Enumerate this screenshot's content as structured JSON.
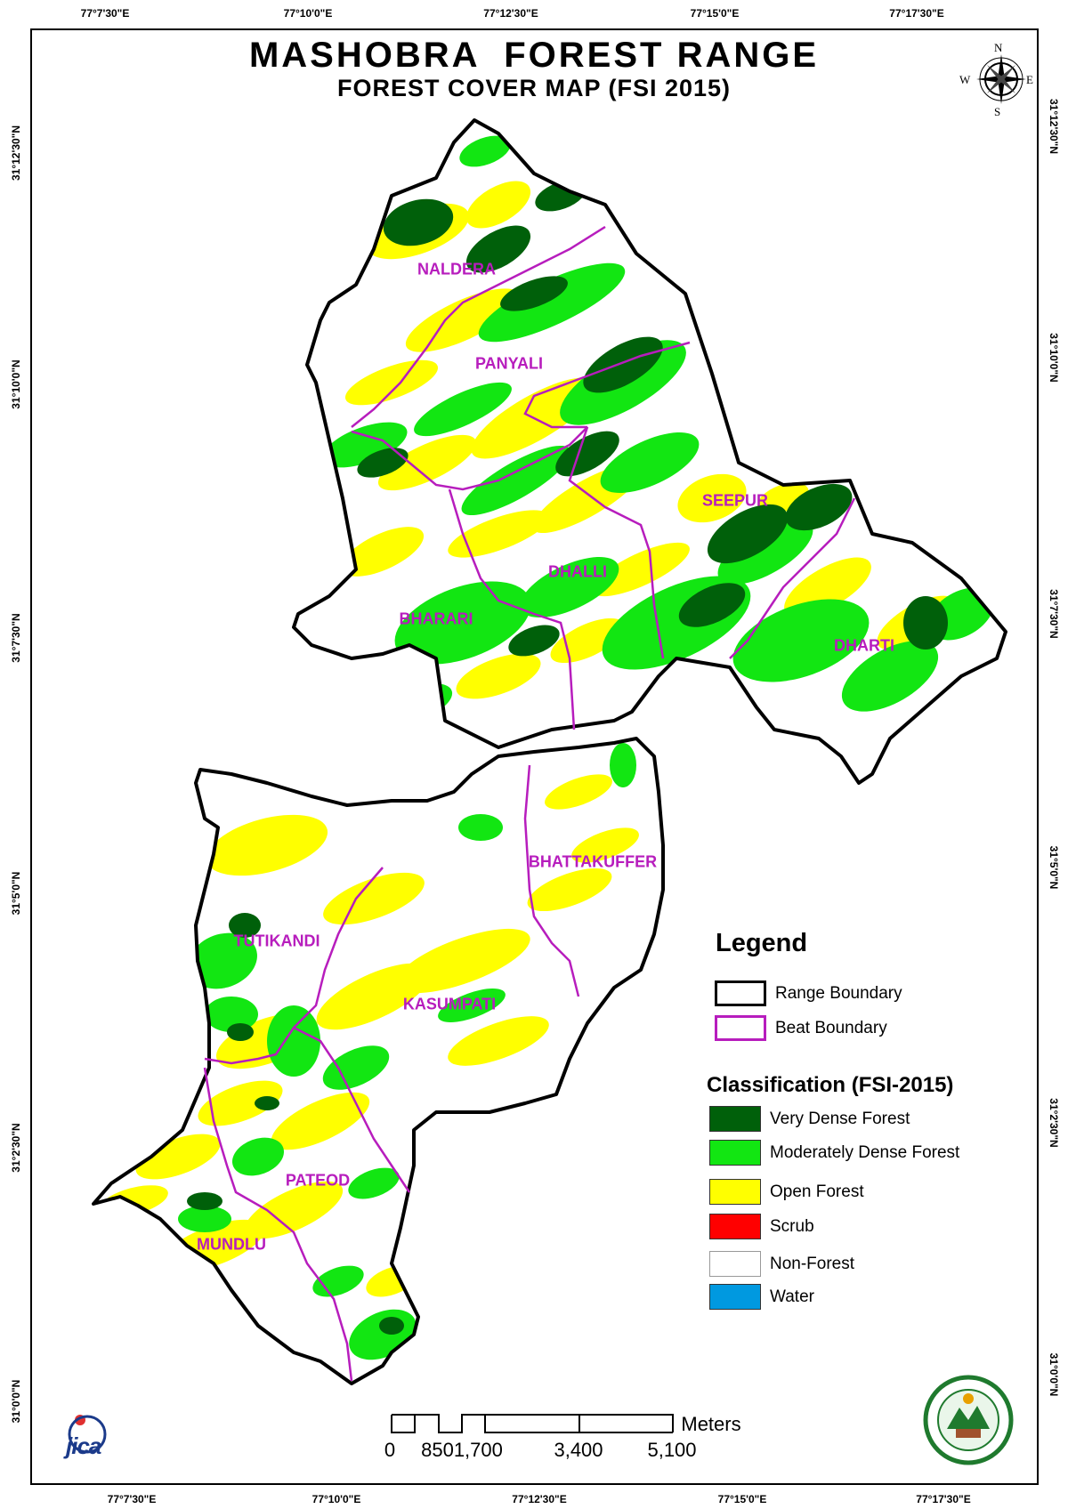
{
  "map": {
    "title": "MASHOBRA  FOREST RANGE",
    "subtitle": "FOREST COVER MAP (FSI 2015)"
  },
  "axes": {
    "top_ticks": [
      "77°7'30\"E",
      "77°10'0\"E",
      "77°12'30\"E",
      "77°15'0\"E",
      "77°17'30\"E"
    ],
    "bottom_ticks": [
      "77°7'30\"E",
      "77°10'0\"E",
      "77°12'30\"E",
      "77°15'0\"E",
      "77°17'30\"E"
    ],
    "left_ticks": [
      "31°12'30\"N",
      "31°10'0\"N",
      "31°7'30\"N",
      "31°5'0\"N",
      "31°2'30\"N",
      "31°0'0\"N"
    ],
    "right_ticks": [
      "31°12'30\"N",
      "31°10'0\"N",
      "31°7'30\"N",
      "31°5'0\"N",
      "31°2'30\"N",
      "31°0'0\"N"
    ]
  },
  "compass": {
    "n": "N",
    "s": "S",
    "e": "E",
    "w": "W"
  },
  "beats": [
    "NALDERA",
    "PANYALI",
    "SEEPUR",
    "DHALLI",
    "BHARARI",
    "DHARTI",
    "BHATTAKUFFER",
    "TUTIKANDI",
    "KASUMPATI",
    "PATEOD",
    "MUNDLU"
  ],
  "legend": {
    "title": "Legend",
    "boundaries": [
      {
        "label": "Range Boundary",
        "color": "#000000"
      },
      {
        "label": "Beat Boundary",
        "color": "#b71dbd"
      }
    ],
    "classification_title": "Classification (FSI-2015)",
    "classes": [
      {
        "label": "Very Dense Forest",
        "color": "#00600a"
      },
      {
        "label": "Moderately Dense Forest",
        "color": "#12e612"
      },
      {
        "label": "Open Forest",
        "color": "#ffff00"
      },
      {
        "label": "Scrub",
        "color": "#ff0000"
      },
      {
        "label": "Non-Forest",
        "color": "#ffffff"
      },
      {
        "label": "Water",
        "color": "#0099e0"
      }
    ]
  },
  "scale_bar": {
    "unit": "Meters",
    "labels": [
      "0",
      "8501,700",
      "3,400",
      "5,100"
    ]
  },
  "logos": {
    "jica": "jica",
    "forest_dept": "forest-department-emblem"
  }
}
